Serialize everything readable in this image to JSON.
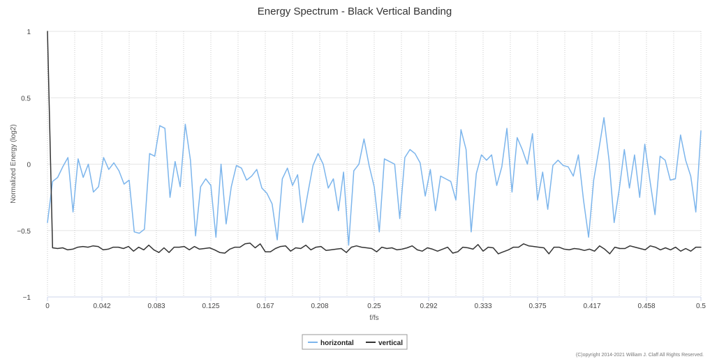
{
  "chart_data": {
    "type": "line",
    "title": "Energy Spectrum - Black Vertical Banding",
    "xlabel": "f/fs",
    "ylabel": "Normalized Energy (log2)",
    "xlim": [
      0,
      0.5
    ],
    "ylim": [
      -1,
      1
    ],
    "x_ticks": [
      0,
      0.042,
      0.083,
      0.125,
      0.167,
      0.208,
      0.25,
      0.292,
      0.333,
      0.375,
      0.417,
      0.458,
      0.5
    ],
    "y_ticks": [
      1,
      0.5,
      0,
      -0.5,
      -1
    ],
    "grid": true,
    "legend_position": "bottom-center",
    "credit": "(C)opyright 2014-2021 William J. Claff All Rights Reserved.",
    "series": [
      {
        "name": "horizontal",
        "color": "#7cb5ec",
        "values": [
          -0.44,
          -0.13,
          -0.1,
          -0.02,
          0.05,
          -0.36,
          0.04,
          -0.1,
          0.0,
          -0.21,
          -0.17,
          0.05,
          -0.04,
          0.01,
          -0.05,
          -0.15,
          -0.12,
          -0.51,
          -0.52,
          -0.49,
          0.08,
          0.06,
          0.29,
          0.27,
          -0.25,
          0.02,
          -0.17,
          0.3,
          0.03,
          -0.54,
          -0.17,
          -0.11,
          -0.16,
          -0.55,
          0.0,
          -0.45,
          -0.17,
          -0.01,
          -0.03,
          -0.12,
          -0.09,
          -0.04,
          -0.18,
          -0.22,
          -0.3,
          -0.57,
          -0.11,
          -0.03,
          -0.16,
          -0.08,
          -0.44,
          -0.22,
          -0.01,
          0.08,
          0.0,
          -0.18,
          -0.11,
          -0.35,
          -0.06,
          -0.61,
          -0.05,
          0.0,
          0.19,
          -0.01,
          -0.17,
          -0.51,
          0.04,
          0.02,
          0.0,
          -0.41,
          0.05,
          0.11,
          0.08,
          0.01,
          -0.24,
          -0.04,
          -0.35,
          -0.09,
          -0.11,
          -0.13,
          -0.27,
          0.26,
          0.11,
          -0.51,
          -0.07,
          0.07,
          0.03,
          0.07,
          -0.16,
          -0.02,
          0.27,
          -0.21,
          0.2,
          0.11,
          0.0,
          0.23,
          -0.27,
          -0.06,
          -0.34,
          -0.01,
          0.03,
          -0.01,
          -0.02,
          -0.09,
          0.07,
          -0.27,
          -0.55,
          -0.12,
          0.11,
          0.35,
          0.03,
          -0.44,
          -0.19,
          0.11,
          -0.18,
          0.07,
          -0.25,
          0.15,
          -0.12,
          -0.38,
          0.06,
          0.03,
          -0.12,
          -0.11,
          0.22,
          0.03,
          -0.09,
          -0.36,
          0.25
        ]
      },
      {
        "name": "vertical",
        "color": "#333333",
        "values": [
          1.0,
          -0.63,
          -0.635,
          -0.63,
          -0.645,
          -0.64,
          -0.625,
          -0.62,
          -0.625,
          -0.615,
          -0.62,
          -0.645,
          -0.64,
          -0.625,
          -0.625,
          -0.635,
          -0.62,
          -0.655,
          -0.625,
          -0.645,
          -0.61,
          -0.645,
          -0.665,
          -0.63,
          -0.665,
          -0.625,
          -0.625,
          -0.62,
          -0.645,
          -0.62,
          -0.64,
          -0.635,
          -0.63,
          -0.645,
          -0.665,
          -0.67,
          -0.64,
          -0.625,
          -0.625,
          -0.6,
          -0.595,
          -0.63,
          -0.6,
          -0.66,
          -0.66,
          -0.635,
          -0.62,
          -0.615,
          -0.655,
          -0.63,
          -0.635,
          -0.61,
          -0.645,
          -0.625,
          -0.62,
          -0.65,
          -0.645,
          -0.64,
          -0.635,
          -0.665,
          -0.625,
          -0.615,
          -0.625,
          -0.63,
          -0.635,
          -0.66,
          -0.625,
          -0.635,
          -0.63,
          -0.645,
          -0.64,
          -0.63,
          -0.615,
          -0.645,
          -0.655,
          -0.63,
          -0.64,
          -0.655,
          -0.64,
          -0.625,
          -0.67,
          -0.66,
          -0.625,
          -0.63,
          -0.64,
          -0.605,
          -0.655,
          -0.625,
          -0.63,
          -0.675,
          -0.66,
          -0.645,
          -0.625,
          -0.625,
          -0.6,
          -0.615,
          -0.62,
          -0.625,
          -0.63,
          -0.675,
          -0.625,
          -0.625,
          -0.64,
          -0.645,
          -0.635,
          -0.64,
          -0.65,
          -0.64,
          -0.655,
          -0.615,
          -0.64,
          -0.675,
          -0.625,
          -0.635,
          -0.635,
          -0.615,
          -0.625,
          -0.635,
          -0.645,
          -0.615,
          -0.625,
          -0.645,
          -0.63,
          -0.645,
          -0.625,
          -0.655,
          -0.635,
          -0.655,
          -0.625,
          -0.625
        ]
      }
    ]
  }
}
